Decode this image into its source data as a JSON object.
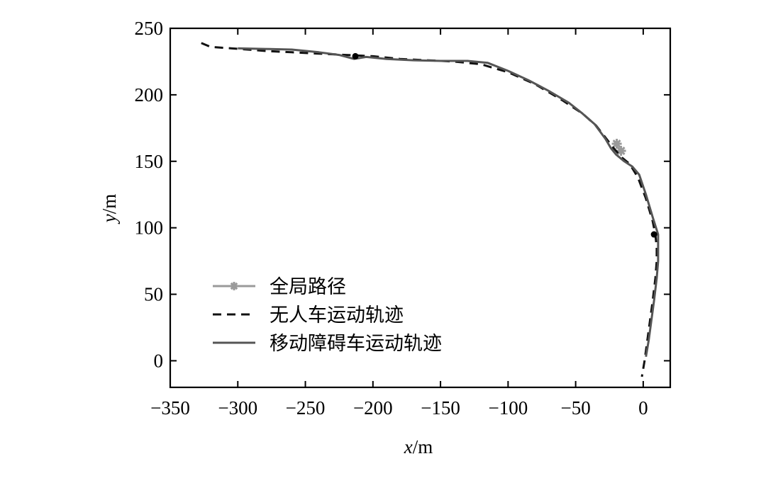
{
  "chart_data": {
    "type": "line",
    "xlabel_var": "x",
    "xlabel_unit": "/m",
    "ylabel_var": "y",
    "ylabel_unit": "/m",
    "xlim": [
      -350,
      20
    ],
    "ylim": [
      -20,
      250
    ],
    "xticks": [
      -350,
      -300,
      -250,
      -200,
      -150,
      -100,
      -50,
      0
    ],
    "xtick_labels": [
      "−350",
      "−300",
      "−250",
      "−200",
      "−150",
      "−100",
      "−50",
      "0"
    ],
    "yticks": [
      0,
      50,
      100,
      150,
      200,
      250
    ],
    "ytick_labels": [
      "0",
      "50",
      "100",
      "150",
      "200",
      "250"
    ],
    "grid": false,
    "legend_position": "lower-left",
    "series": [
      {
        "name": "全局路径",
        "style": "solid-star",
        "color": "#9a9a9a",
        "points": [
          [
            -18,
            160
          ]
        ]
      },
      {
        "name": "无人车运动轨迹",
        "style": "dashed",
        "color": "#111111",
        "points": [
          [
            -327,
            239
          ],
          [
            -320,
            236
          ],
          [
            -305,
            235
          ],
          [
            -280,
            233
          ],
          [
            -260,
            232
          ],
          [
            -240,
            231
          ],
          [
            -220,
            230
          ],
          [
            -200,
            229
          ],
          [
            -180,
            227
          ],
          [
            -160,
            226
          ],
          [
            -140,
            225
          ],
          [
            -120,
            223
          ],
          [
            -100,
            217
          ],
          [
            -80,
            208
          ],
          [
            -60,
            196
          ],
          [
            -45,
            186
          ],
          [
            -35,
            177
          ],
          [
            -28,
            168
          ],
          [
            -22,
            160
          ],
          [
            -16,
            153
          ],
          [
            -10,
            148
          ],
          [
            -4,
            138
          ],
          [
            2,
            122
          ],
          [
            7,
            105
          ],
          [
            9,
            95
          ],
          [
            10,
            85
          ],
          [
            10,
            75
          ],
          [
            9,
            62
          ],
          [
            7,
            45
          ],
          [
            5,
            30
          ],
          [
            3,
            15
          ],
          [
            1,
            0
          ],
          [
            -1,
            -12
          ]
        ]
      },
      {
        "name": "移动障碍车运动轨迹",
        "style": "solid",
        "color": "#555555",
        "points": [
          [
            -300,
            235
          ],
          [
            -280,
            234.5
          ],
          [
            -260,
            234
          ],
          [
            -240,
            232
          ],
          [
            -225,
            230
          ],
          [
            -214,
            227
          ],
          [
            -205,
            228.5
          ],
          [
            -190,
            227
          ],
          [
            -170,
            226
          ],
          [
            -150,
            225.5
          ],
          [
            -130,
            225.5
          ],
          [
            -115,
            224
          ],
          [
            -100,
            218
          ],
          [
            -85,
            211
          ],
          [
            -70,
            203
          ],
          [
            -55,
            194
          ],
          [
            -45,
            186
          ],
          [
            -36,
            178
          ],
          [
            -28,
            167
          ],
          [
            -24,
            160
          ],
          [
            -20,
            155
          ],
          [
            -14,
            150
          ],
          [
            -8,
            146
          ],
          [
            -3,
            140
          ],
          [
            2,
            125
          ],
          [
            7,
            108
          ],
          [
            11,
            95
          ],
          [
            11,
            85
          ],
          [
            11,
            75
          ],
          [
            10,
            62
          ],
          [
            8,
            45
          ],
          [
            6,
            30
          ],
          [
            4,
            15
          ],
          [
            2,
            3
          ]
        ]
      },
      {
        "name": "",
        "style": "markers",
        "color": "#000000",
        "points": [
          [
            -213,
            229
          ],
          [
            8,
            95
          ]
        ]
      }
    ]
  }
}
